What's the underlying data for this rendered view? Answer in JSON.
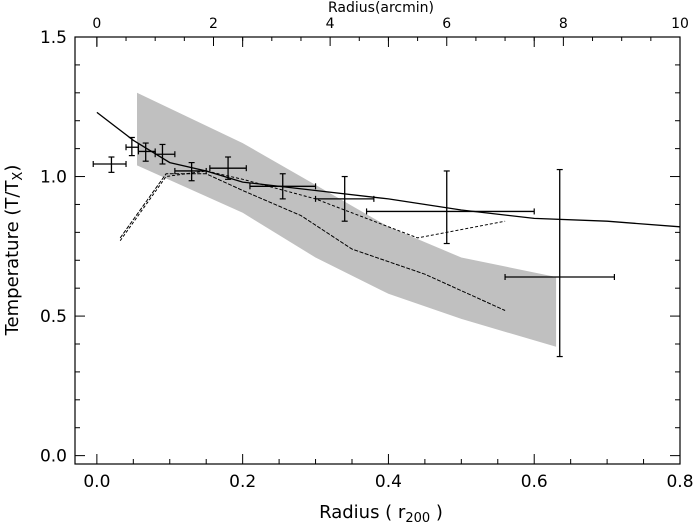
{
  "chart_data": {
    "type": "line",
    "xlabel": "Radius ( r",
    "xlabel_sub": "200",
    "xlabel_close": " )",
    "ylabel": "Temperature  (T/T",
    "ylabel_sub": "X",
    "ylabel_close": ")",
    "top_axis_label": "Radius(arcmin)",
    "xlim": [
      -0.03,
      0.8
    ],
    "ylim": [
      -0.03,
      1.5
    ],
    "top_xlim": [
      0,
      10
    ],
    "x_ticks": [
      "0.0",
      "0.2",
      "0.4",
      "0.6",
      "0.8"
    ],
    "x_tick_values": [
      0.0,
      0.2,
      0.4,
      0.6,
      0.8
    ],
    "y_ticks": [
      "0.0",
      "0.5",
      "1.0",
      "1.5"
    ],
    "y_tick_values": [
      0.0,
      0.5,
      1.0,
      1.5
    ],
    "top_ticks": [
      "0",
      "2",
      "4",
      "6",
      "8",
      "10"
    ],
    "top_tick_values": [
      0,
      2,
      4,
      6,
      8,
      10
    ],
    "grid": false,
    "shaded_band": {
      "color": "#c0c0c0",
      "upper": [
        [
          0.055,
          1.3
        ],
        [
          0.2,
          1.12
        ],
        [
          0.3,
          0.97
        ],
        [
          0.4,
          0.82
        ],
        [
          0.5,
          0.71
        ],
        [
          0.63,
          0.64
        ]
      ],
      "lower": [
        [
          0.055,
          1.04
        ],
        [
          0.2,
          0.87
        ],
        [
          0.3,
          0.71
        ],
        [
          0.4,
          0.58
        ],
        [
          0.5,
          0.49
        ],
        [
          0.63,
          0.39
        ]
      ]
    },
    "series": [
      {
        "style": "solid",
        "points": [
          [
            0.0,
            1.23
          ],
          [
            0.05,
            1.13
          ],
          [
            0.1,
            1.05
          ],
          [
            0.15,
            1.02
          ],
          [
            0.2,
            0.98
          ],
          [
            0.3,
            0.95
          ],
          [
            0.4,
            0.92
          ],
          [
            0.5,
            0.88
          ],
          [
            0.6,
            0.85
          ],
          [
            0.7,
            0.84
          ],
          [
            0.8,
            0.82
          ]
        ]
      },
      {
        "style": "short-dash",
        "points": [
          [
            0.032,
            0.77
          ],
          [
            0.095,
            1.0
          ],
          [
            0.15,
            1.02
          ],
          [
            0.2,
            0.99
          ],
          [
            0.3,
            0.92
          ],
          [
            0.44,
            0.78
          ],
          [
            0.56,
            0.84
          ]
        ]
      },
      {
        "style": "long-dash",
        "points": [
          [
            0.032,
            0.78
          ],
          [
            0.095,
            1.01
          ],
          [
            0.15,
            1.01
          ],
          [
            0.2,
            0.95
          ],
          [
            0.28,
            0.86
          ],
          [
            0.35,
            0.74
          ],
          [
            0.45,
            0.65
          ],
          [
            0.56,
            0.52
          ]
        ]
      }
    ],
    "error_points": [
      {
        "x": 0.02,
        "xlo": -0.005,
        "xhi": 0.04,
        "y": 1.045,
        "ylo": 1.015,
        "yhi": 1.07
      },
      {
        "x": 0.048,
        "xlo": 0.04,
        "xhi": 0.057,
        "y": 1.105,
        "ylo": 1.075,
        "yhi": 1.14
      },
      {
        "x": 0.067,
        "xlo": 0.057,
        "xhi": 0.08,
        "y": 1.09,
        "ylo": 1.055,
        "yhi": 1.12
      },
      {
        "x": 0.09,
        "xlo": 0.08,
        "xhi": 0.107,
        "y": 1.08,
        "ylo": 1.045,
        "yhi": 1.115
      },
      {
        "x": 0.13,
        "xlo": 0.107,
        "xhi": 0.15,
        "y": 1.02,
        "ylo": 0.985,
        "yhi": 1.05
      },
      {
        "x": 0.18,
        "xlo": 0.155,
        "xhi": 0.205,
        "y": 1.03,
        "ylo": 0.99,
        "yhi": 1.07
      },
      {
        "x": 0.255,
        "xlo": 0.21,
        "xhi": 0.3,
        "y": 0.965,
        "ylo": 0.92,
        "yhi": 1.01
      },
      {
        "x": 0.34,
        "xlo": 0.3,
        "xhi": 0.38,
        "y": 0.92,
        "ylo": 0.84,
        "yhi": 1.0
      },
      {
        "x": 0.48,
        "xlo": 0.37,
        "xhi": 0.6,
        "y": 0.875,
        "ylo": 0.76,
        "yhi": 1.02
      },
      {
        "x": 0.635,
        "xlo": 0.56,
        "xhi": 0.71,
        "y": 0.64,
        "ylo": 0.355,
        "yhi": 1.025
      }
    ]
  }
}
